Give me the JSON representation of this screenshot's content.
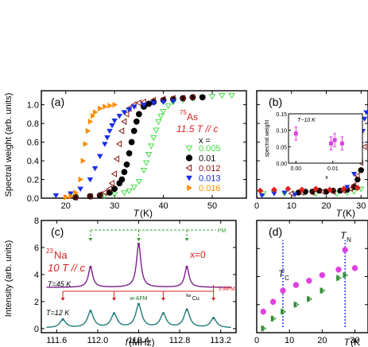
{
  "chart_data": [
    {
      "id": "a",
      "type": "scatter",
      "panel_label": "(a)",
      "annotation_isotope": "75",
      "annotation_nucleus": "As",
      "annotation_field": "11.5 T // c",
      "legend_title": "x =",
      "xlabel": "T (K)",
      "ylabel": "Spectral weight (arb. units)",
      "xlim": [
        15,
        57
      ],
      "ylim": [
        0,
        1.15
      ],
      "xticks": [
        20,
        30,
        40,
        50
      ],
      "yticks": [
        0.0,
        0.2,
        0.4,
        0.6,
        0.8,
        1.0
      ],
      "ytick_labels": [
        "0.0",
        "0.2",
        "0.4",
        "0.6",
        "0.8",
        "1.0"
      ],
      "series": [
        {
          "name": "0.005",
          "color": "#44dd44",
          "marker": "triangle-down-open",
          "x": [
            22,
            25,
            28,
            30,
            32,
            33,
            34,
            35,
            36,
            36.5,
            37,
            37.5,
            38,
            38.5,
            39,
            39.5,
            40,
            41,
            42,
            44,
            46,
            48,
            50,
            52,
            54
          ],
          "y": [
            0.02,
            0.02,
            0.03,
            0.04,
            0.06,
            0.08,
            0.12,
            0.18,
            0.3,
            0.38,
            0.47,
            0.56,
            0.65,
            0.73,
            0.82,
            0.88,
            0.93,
            0.99,
            1.03,
            1.05,
            1.07,
            1.08,
            1.09,
            1.1,
            1.1
          ]
        },
        {
          "name": "0.01",
          "color": "#000000",
          "marker": "circle",
          "x": [
            22,
            25,
            27,
            29,
            30,
            31,
            31.5,
            32,
            32.5,
            33,
            33.5,
            34,
            34.5,
            35,
            36,
            37,
            38,
            40,
            42,
            44,
            46,
            48
          ],
          "y": [
            0.01,
            0.02,
            0.03,
            0.06,
            0.1,
            0.16,
            0.2,
            0.28,
            0.36,
            0.48,
            0.6,
            0.72,
            0.82,
            0.9,
            0.98,
            1.01,
            1.03,
            1.05,
            1.06,
            1.07,
            1.08,
            1.08
          ]
        },
        {
          "name": "0.012",
          "color": "#8b1a1a",
          "marker": "triangle-left-open",
          "x": [
            22,
            25,
            27,
            28,
            29,
            29.5,
            30,
            30.5,
            31,
            31.5,
            32,
            32.5,
            33,
            34,
            35,
            36,
            38,
            40,
            42,
            44,
            46
          ],
          "y": [
            0.01,
            0.02,
            0.04,
            0.06,
            0.1,
            0.16,
            0.26,
            0.42,
            0.58,
            0.72,
            0.82,
            0.9,
            0.96,
            1.0,
            1.02,
            1.03,
            1.05,
            1.06,
            1.07,
            1.07,
            1.08
          ]
        },
        {
          "name": "0.013",
          "color": "#1a2ee6",
          "marker": "triangle-down",
          "x": [
            18,
            21,
            23,
            25,
            26,
            27,
            28,
            28.5,
            29,
            29.5,
            30,
            31,
            32,
            33,
            34,
            36,
            38,
            40,
            42
          ],
          "y": [
            0.03,
            0.05,
            0.1,
            0.2,
            0.32,
            0.45,
            0.58,
            0.65,
            0.72,
            0.78,
            0.83,
            0.88,
            0.92,
            0.95,
            0.98,
            1.0,
            1.02,
            1.03,
            1.04
          ]
        },
        {
          "name": "0.016",
          "color": "#ff8c00",
          "marker": "triangle-right",
          "x": [
            20,
            21,
            22,
            23,
            23.5,
            24,
            24.5,
            25,
            25.5,
            26,
            27,
            28,
            29,
            30
          ],
          "y": [
            0.01,
            0.02,
            0.06,
            0.2,
            0.4,
            0.58,
            0.72,
            0.82,
            0.88,
            0.92,
            0.96,
            0.98,
            0.99,
            1.0
          ]
        }
      ]
    },
    {
      "id": "b",
      "type": "scatter",
      "panel_label": "(b)",
      "xlabel": "T (K)",
      "xlim": [
        0,
        32
      ],
      "ylim": [
        0,
        1.15
      ],
      "xticks": [
        0,
        10,
        20,
        30
      ],
      "series": [
        {
          "name": "0.005",
          "color": "#44dd44",
          "marker": "triangle-down-open",
          "x": [
            2,
            5,
            8,
            11,
            14,
            17,
            20,
            23,
            26,
            28,
            30
          ],
          "y": [
            0.05,
            0.06,
            0.05,
            0.05,
            0.06,
            0.05,
            0.06,
            0.05,
            0.06,
            0.07,
            0.1
          ]
        },
        {
          "name": "0.01",
          "color": "#000000",
          "marker": "circle",
          "x": [
            12,
            14,
            16,
            18,
            20,
            22,
            24,
            26,
            28,
            29,
            30
          ],
          "y": [
            0.06,
            0.07,
            0.07,
            0.08,
            0.07,
            0.08,
            0.08,
            0.09,
            0.12,
            0.2,
            0.3
          ]
        },
        {
          "name": "0.012",
          "color": "#8b1a1a",
          "marker": "triangle-left-open",
          "x": [
            10,
            13,
            16,
            19,
            22,
            25,
            27,
            28,
            29,
            30,
            31
          ],
          "y": [
            0.05,
            0.06,
            0.06,
            0.07,
            0.07,
            0.08,
            0.1,
            0.14,
            0.24,
            0.38,
            0.55
          ]
        },
        {
          "name": "0.013",
          "color": "#1a2ee6",
          "marker": "triangle-down",
          "x": [
            1.5,
            5,
            8,
            11,
            26,
            28,
            29,
            30,
            30.5,
            31,
            31.5
          ],
          "y": [
            0.03,
            0.05,
            0.06,
            0.04,
            0.12,
            0.26,
            0.4,
            0.58,
            0.72,
            0.85,
            0.92
          ]
        },
        {
          "name": "red diamond",
          "color": "#e02020",
          "marker": "diamond",
          "x": [
            1,
            5,
            9,
            13,
            17,
            21,
            25,
            29
          ],
          "y": [
            0.08,
            0.09,
            0.1,
            0.09,
            0.1,
            0.09,
            0.1,
            0.11
          ]
        }
      ],
      "inset": {
        "label": "T~10 K",
        "xlabel": "x",
        "ylabel": "spectral weight",
        "xlim": [
          -0.002,
          0.018
        ],
        "ylim": [
          0,
          0.15
        ],
        "xticks": [
          0.0,
          0.01
        ],
        "xtick_labels": [
          "0.00",
          "0.01"
        ],
        "yticks": [
          0.0,
          0.05,
          0.1,
          0.15
        ],
        "ytick_labels": [
          "0.00",
          "0.05",
          "0.10",
          "0.15"
        ],
        "points": [
          {
            "x": 0.0,
            "y": 0.09,
            "err": 0.02
          },
          {
            "x": 0.0095,
            "y": 0.06,
            "err": 0.02
          },
          {
            "x": 0.0105,
            "y": 0.07,
            "err": 0.02
          },
          {
            "x": 0.0125,
            "y": 0.06,
            "err": 0.02
          }
        ]
      }
    },
    {
      "id": "c",
      "type": "line",
      "panel_label": "(c)",
      "annotation_isotope": "23",
      "annotation_nucleus": "Na",
      "annotation_field": "10 T // c",
      "annotation_x": "x=0",
      "xlabel": "f (MHz)",
      "ylabel": "Intensity (arb. units)",
      "xlim": [
        111.45,
        113.35
      ],
      "ylim": [
        -0.3,
        8
      ],
      "xticks": [
        111.6,
        112.0,
        112.4,
        112.8,
        113.2
      ],
      "xtick_labels": [
        "111.6",
        "112.0",
        "112.4",
        "112.8",
        "113.2"
      ],
      "yticks": [
        0,
        2,
        4,
        6,
        8
      ],
      "series": [
        {
          "name": "T=45 K",
          "label": "T=45 K",
          "color": "#7b1f8a",
          "offset": 3.0,
          "peaks": [
            {
              "x": 111.93,
              "height": 1.5,
              "width": 0.026
            },
            {
              "x": 112.4,
              "height": 3.2,
              "width": 0.026
            },
            {
              "x": 112.87,
              "height": 1.5,
              "width": 0.026
            }
          ]
        },
        {
          "name": "T=12 K",
          "label": "T=12 K",
          "color": "#1f7a7a",
          "offset": 0.0,
          "peaks": [
            {
              "x": 111.66,
              "height": 0.6,
              "width": 0.035
            },
            {
              "x": 111.93,
              "height": 1.2,
              "width": 0.035
            },
            {
              "x": 112.16,
              "height": 1.0,
              "width": 0.035
            },
            {
              "x": 112.4,
              "height": 1.7,
              "width": 0.035
            },
            {
              "x": 112.64,
              "height": 1.0,
              "width": 0.035
            },
            {
              "x": 112.87,
              "height": 1.3,
              "width": 0.035
            },
            {
              "x": 113.13,
              "height": 0.7,
              "width": 0.035
            }
          ]
        }
      ],
      "bracket_labels": {
        "pm": "PM",
        "w_afm": "w-AFM",
        "cu": "Cu",
        "cu_super": "Na",
        "s_afm": "s-AFM"
      }
    },
    {
      "id": "d",
      "type": "scatter",
      "panel_label": "(d)",
      "xlabel": "T (K)",
      "xlim": [
        0,
        34
      ],
      "ylim": [
        0,
        8
      ],
      "xticks": [
        0,
        10,
        20,
        30
      ],
      "annotation_tc": "T",
      "annotation_tc_sub": "C",
      "annotation_tn": "T",
      "annotation_tn_sub": "N",
      "tc_x": 8,
      "tn_x": 27,
      "series": [
        {
          "name": "magenta",
          "color": "#e040e0",
          "marker": "circle",
          "x": [
            2,
            5,
            8,
            12,
            16,
            20,
            25,
            27,
            30
          ],
          "y": [
            1.5,
            2.2,
            3.0,
            3.4,
            3.7,
            4.1,
            4.5,
            5.9,
            4.6
          ]
        },
        {
          "name": "green",
          "color": "#2e8b2e",
          "marker": "triangle-right-half",
          "x": [
            2,
            5,
            8,
            12,
            16,
            20,
            25,
            27
          ],
          "y": [
            0.3,
            1.0,
            1.5,
            2.0,
            2.4,
            3.0,
            3.9,
            4.1
          ]
        }
      ]
    }
  ]
}
